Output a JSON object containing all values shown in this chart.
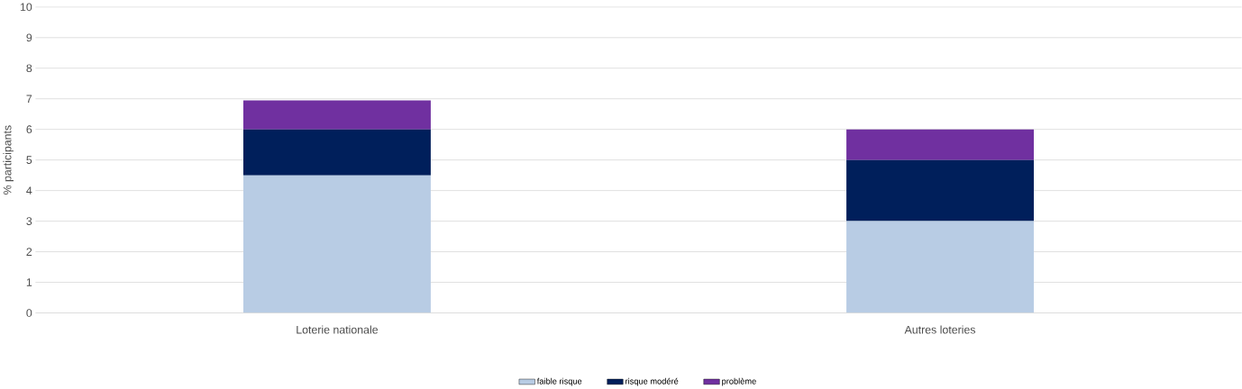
{
  "chart_data": {
    "type": "bar",
    "stacked": true,
    "ylabel": "% participants",
    "categories": [
      "Loterie nationale",
      "Autres loteries"
    ],
    "series": [
      {
        "name": "faible risque",
        "color": "#b8cce4",
        "values": [
          4.5,
          3.0
        ]
      },
      {
        "name": "risque modéré",
        "color": "#001f5b",
        "values": [
          1.5,
          2.0
        ]
      },
      {
        "name": "problème",
        "color": "#7030a0",
        "values": [
          0.95,
          1.0
        ]
      }
    ],
    "ylim": [
      0,
      10
    ],
    "yticks": [
      0,
      1,
      2,
      3,
      4,
      5,
      6,
      7,
      8,
      9,
      10
    ],
    "grid": "y",
    "legend": "bottom"
  }
}
